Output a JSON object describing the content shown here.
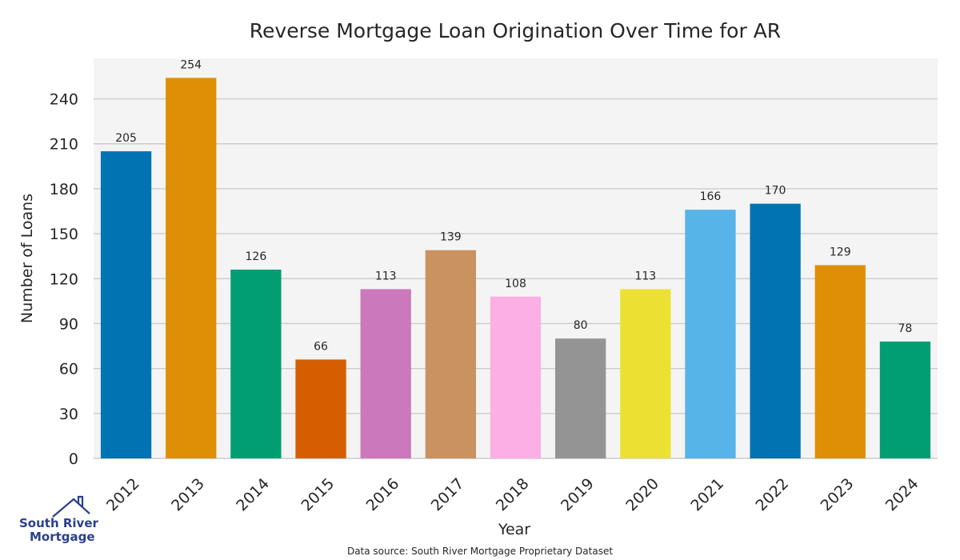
{
  "chart_data": {
    "type": "bar",
    "title": "Reverse Mortgage Loan Origination Over Time for AR",
    "xlabel": "Year",
    "ylabel": "Number of Loans",
    "categories": [
      "2012",
      "2013",
      "2014",
      "2015",
      "2016",
      "2017",
      "2018",
      "2019",
      "2020",
      "2021",
      "2022",
      "2023",
      "2024"
    ],
    "values": [
      205,
      254,
      126,
      66,
      113,
      139,
      108,
      80,
      113,
      166,
      170,
      129,
      78
    ],
    "data_labels": [
      "205",
      "254",
      "126",
      "66",
      "113",
      "139",
      "108",
      "80",
      "113",
      "166",
      "170",
      "129",
      "78"
    ],
    "yticks": [
      0,
      30,
      60,
      90,
      120,
      150,
      180,
      210,
      240
    ],
    "ylim": [
      0,
      267
    ],
    "grid": true,
    "colors": [
      "#0173b2",
      "#de8f05",
      "#029e73",
      "#d55e00",
      "#cc78bc",
      "#ca9161",
      "#fbafe4",
      "#949494",
      "#ece133",
      "#56b4e9",
      "#0173b2",
      "#de8f05",
      "#029e73"
    ],
    "plot_background": "#f4f4f4",
    "grid_color": "#cccccc"
  },
  "footer": {
    "source": "Data source: South River Mortgage Proprietary Dataset"
  },
  "logo": {
    "line1": "South River",
    "line2": "Mortgage",
    "color": "#2a3f8f"
  }
}
